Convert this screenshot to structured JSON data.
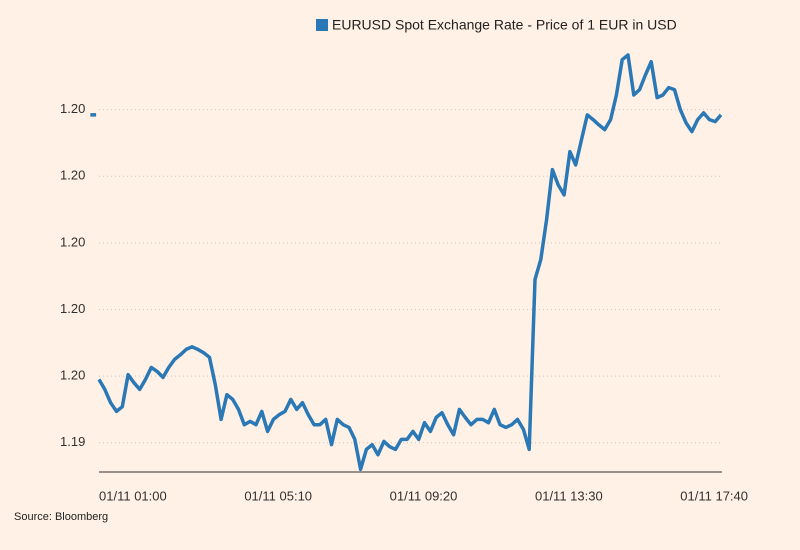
{
  "chart_data": {
    "type": "line",
    "series": [
      {
        "name": "EURUSD Spot Exchange Rate - Price of 1 EUR in USD",
        "color": "#2a78b5",
        "values": [
          1.19892,
          1.19892,
          null,
          1.19495,
          1.1948,
          1.1946,
          1.19447,
          1.19454,
          1.19502,
          1.1949,
          1.1948,
          1.19495,
          1.19513,
          1.19507,
          1.19498,
          1.19513,
          1.19525,
          1.19532,
          1.1954,
          1.19544,
          1.1954,
          1.19535,
          1.19528,
          1.19487,
          1.19435,
          1.19472,
          1.19465,
          1.1945,
          1.19427,
          1.19432,
          1.19427,
          1.19447,
          1.19417,
          1.19435,
          1.19442,
          1.19447,
          1.19465,
          1.1945,
          1.1946,
          1.19442,
          1.19427,
          1.19427,
          1.19435,
          1.19397,
          1.19435,
          1.19427,
          1.19423,
          1.19405,
          1.1936,
          1.1939,
          1.19397,
          1.19382,
          1.19402,
          1.19394,
          1.1939,
          1.19405,
          1.19405,
          1.19417,
          1.19405,
          1.1943,
          1.19417,
          1.19438,
          1.19445,
          1.19427,
          1.19412,
          1.1945,
          1.19438,
          1.19427,
          1.19435,
          1.19435,
          1.1943,
          1.1945,
          1.19427,
          1.19423,
          1.19427,
          1.19435,
          1.1942,
          1.1939,
          1.19645,
          1.19675,
          1.19735,
          1.1981,
          1.19787,
          1.19772,
          1.19837,
          1.19817,
          1.19855,
          1.19892,
          1.19885,
          1.19877,
          1.1987,
          1.19885,
          1.19922,
          1.19975,
          1.19982,
          1.19922,
          1.1993,
          1.19952,
          1.19972,
          1.19918,
          1.19922,
          1.19933,
          1.1993,
          1.199,
          1.1988,
          1.19867,
          1.19885,
          1.19895,
          1.19885,
          1.19882,
          1.19892
        ]
      }
    ],
    "x": [
      "01/11 00:45",
      "01/11 00:55",
      "01/11 00:58",
      "01/11 01:00",
      "01/11 01:10",
      "01/11 01:20",
      "01/11 01:30",
      "01/11 01:40",
      "01/11 01:50",
      "01/11 02:00",
      "01/11 02:10",
      "01/11 02:20",
      "01/11 02:30",
      "01/11 02:40",
      "01/11 02:50",
      "01/11 03:00",
      "01/11 03:10",
      "01/11 03:20",
      "01/11 03:30",
      "01/11 03:40",
      "01/11 03:50",
      "01/11 04:00",
      "01/11 04:10",
      "01/11 04:20",
      "01/11 04:30",
      "01/11 04:40",
      "01/11 04:50",
      "01/11 05:00",
      "01/11 05:10",
      "01/11 05:20",
      "01/11 05:30",
      "01/11 05:40",
      "01/11 05:50",
      "01/11 06:00",
      "01/11 06:10",
      "01/11 06:20",
      "01/11 06:30",
      "01/11 06:40",
      "01/11 06:50",
      "01/11 07:00",
      "01/11 07:10",
      "01/11 07:20",
      "01/11 07:30",
      "01/11 07:40",
      "01/11 07:50",
      "01/11 08:00",
      "01/11 08:10",
      "01/11 08:20",
      "01/11 08:30",
      "01/11 08:40",
      "01/11 08:50",
      "01/11 09:00",
      "01/11 09:10",
      "01/11 09:20",
      "01/11 09:30",
      "01/11 09:40",
      "01/11 09:50",
      "01/11 10:00",
      "01/11 10:10",
      "01/11 10:20",
      "01/11 10:30",
      "01/11 10:40",
      "01/11 10:50",
      "01/11 11:00",
      "01/11 11:10",
      "01/11 11:20",
      "01/11 11:30",
      "01/11 11:40",
      "01/11 11:50",
      "01/11 12:00",
      "01/11 12:10",
      "01/11 12:20",
      "01/11 12:30",
      "01/11 12:40",
      "01/11 12:50",
      "01/11 13:00",
      "01/11 13:10",
      "01/11 13:20",
      "01/11 13:30",
      "01/11 13:40",
      "01/11 13:50",
      "01/11 14:00",
      "01/11 14:10",
      "01/11 14:20",
      "01/11 14:30",
      "01/11 14:40",
      "01/11 14:50",
      "01/11 15:00",
      "01/11 15:10",
      "01/11 15:20",
      "01/11 15:30",
      "01/11 15:40",
      "01/11 15:50",
      "01/11 16:00",
      "01/11 16:10",
      "01/11 16:20",
      "01/11 16:30",
      "01/11 16:40",
      "01/11 16:50",
      "01/11 17:00",
      "01/11 17:10",
      "01/11 17:20",
      "01/11 17:30",
      "01/11 17:40",
      "01/11 17:50",
      "01/11 18:00",
      "01/11 18:10",
      "01/11 18:20",
      "01/11 18:30",
      "01/11 18:40",
      "01/11 18:50"
    ],
    "xlim": [
      "01/11 00:45",
      "01/11 18:50"
    ],
    "xticks": [
      "01/11 01:00",
      "01/11 05:10",
      "01/11 09:20",
      "01/11 13:30",
      "01/11 17:40"
    ],
    "ylim": [
      1.1935,
      1.2
    ],
    "yticks": [
      {
        "value": 1.194,
        "label": "1.19"
      },
      {
        "value": 1.195,
        "label": "1.20"
      },
      {
        "value": 1.196,
        "label": "1.20"
      },
      {
        "value": 1.197,
        "label": "1.20"
      },
      {
        "value": 1.198,
        "label": "1.20"
      },
      {
        "value": 1.199,
        "label": "1.20"
      }
    ],
    "grid": true,
    "legend": "top",
    "source": "Source: Bloomberg"
  }
}
